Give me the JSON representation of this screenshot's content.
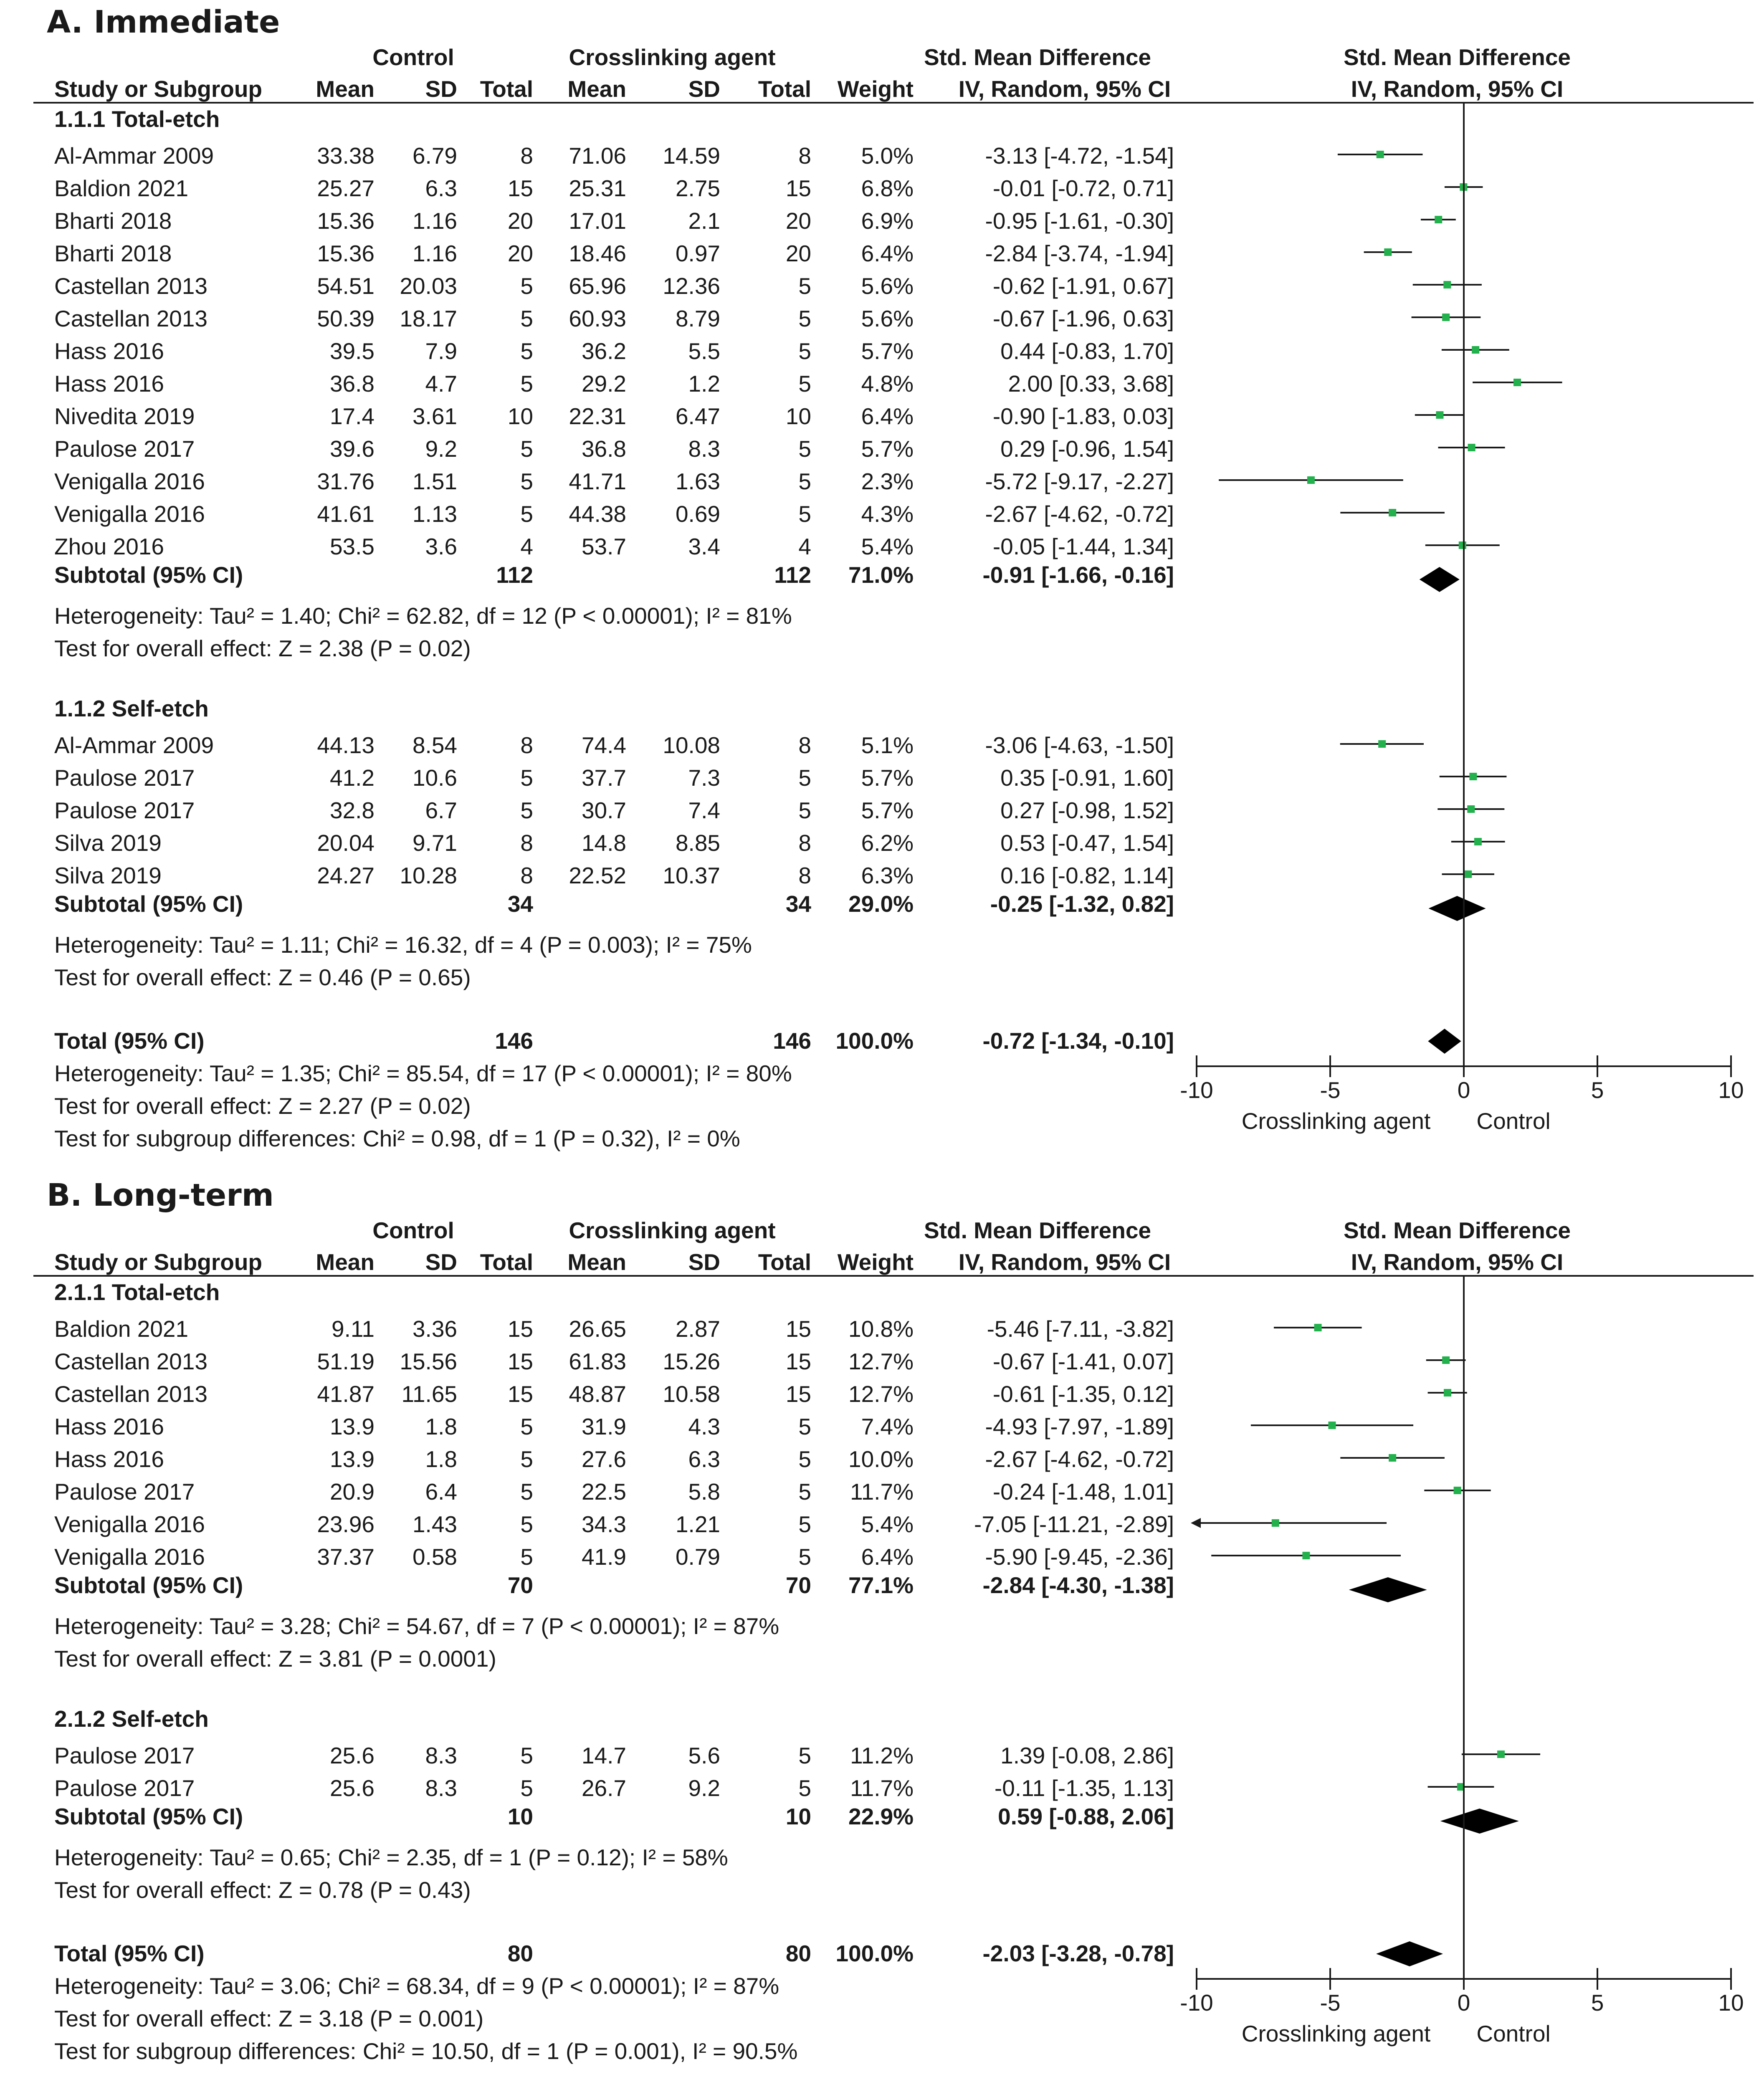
{
  "header": {
    "control": "Control",
    "treatment": "Crosslinking agent",
    "smd": "Std. Mean Difference",
    "study": "Study or Subgroup",
    "mean": "Mean",
    "sd": "SD",
    "total": "Total",
    "weight": "Weight",
    "method": "IV, Random, 95% CI"
  },
  "colors": {
    "marker": "#22b14c",
    "line": "#1a1a1a"
  },
  "chart_data": [
    {
      "type": "forest",
      "title": "A. Immediate",
      "xlim": [
        -10,
        10
      ],
      "xticks": [
        "-10",
        "-5",
        "0",
        "5",
        "10"
      ],
      "xlabel_left": "Crosslinking agent",
      "xlabel_right": "Control",
      "subgroups": [
        {
          "name": "1.1.1 Total-etch",
          "studies": [
            {
              "study": "Al-Ammar 2009",
              "c_mean": "33.38",
              "c_sd": "6.79",
              "c_n": "8",
              "t_mean": "71.06",
              "t_sd": "14.59",
              "t_n": "8",
              "weight": "5.0%",
              "ci_text": "-3.13 [-4.72, -1.54]",
              "est": -3.13,
              "lo": -4.72,
              "hi": -1.54
            },
            {
              "study": "Baldion 2021",
              "c_mean": "25.27",
              "c_sd": "6.3",
              "c_n": "15",
              "t_mean": "25.31",
              "t_sd": "2.75",
              "t_n": "15",
              "weight": "6.8%",
              "ci_text": "-0.01 [-0.72, 0.71]",
              "est": -0.01,
              "lo": -0.72,
              "hi": 0.71
            },
            {
              "study": "Bharti 2018",
              "c_mean": "15.36",
              "c_sd": "1.16",
              "c_n": "20",
              "t_mean": "17.01",
              "t_sd": "2.1",
              "t_n": "20",
              "weight": "6.9%",
              "ci_text": "-0.95 [-1.61, -0.30]",
              "est": -0.95,
              "lo": -1.61,
              "hi": -0.3
            },
            {
              "study": "Bharti 2018",
              "c_mean": "15.36",
              "c_sd": "1.16",
              "c_n": "20",
              "t_mean": "18.46",
              "t_sd": "0.97",
              "t_n": "20",
              "weight": "6.4%",
              "ci_text": "-2.84 [-3.74, -1.94]",
              "est": -2.84,
              "lo": -3.74,
              "hi": -1.94
            },
            {
              "study": "Castellan 2013",
              "c_mean": "54.51",
              "c_sd": "20.03",
              "c_n": "5",
              "t_mean": "65.96",
              "t_sd": "12.36",
              "t_n": "5",
              "weight": "5.6%",
              "ci_text": "-0.62 [-1.91, 0.67]",
              "est": -0.62,
              "lo": -1.91,
              "hi": 0.67
            },
            {
              "study": "Castellan 2013",
              "c_mean": "50.39",
              "c_sd": "18.17",
              "c_n": "5",
              "t_mean": "60.93",
              "t_sd": "8.79",
              "t_n": "5",
              "weight": "5.6%",
              "ci_text": "-0.67 [-1.96, 0.63]",
              "est": -0.67,
              "lo": -1.96,
              "hi": 0.63
            },
            {
              "study": "Hass 2016",
              "c_mean": "39.5",
              "c_sd": "7.9",
              "c_n": "5",
              "t_mean": "36.2",
              "t_sd": "5.5",
              "t_n": "5",
              "weight": "5.7%",
              "ci_text": "0.44 [-0.83, 1.70]",
              "est": 0.44,
              "lo": -0.83,
              "hi": 1.7
            },
            {
              "study": "Hass 2016",
              "c_mean": "36.8",
              "c_sd": "4.7",
              "c_n": "5",
              "t_mean": "29.2",
              "t_sd": "1.2",
              "t_n": "5",
              "weight": "4.8%",
              "ci_text": "2.00 [0.33, 3.68]",
              "est": 2.0,
              "lo": 0.33,
              "hi": 3.68
            },
            {
              "study": "Nivedita 2019",
              "c_mean": "17.4",
              "c_sd": "3.61",
              "c_n": "10",
              "t_mean": "22.31",
              "t_sd": "6.47",
              "t_n": "10",
              "weight": "6.4%",
              "ci_text": "-0.90 [-1.83, 0.03]",
              "est": -0.9,
              "lo": -1.83,
              "hi": 0.03
            },
            {
              "study": "Paulose 2017",
              "c_mean": "39.6",
              "c_sd": "9.2",
              "c_n": "5",
              "t_mean": "36.8",
              "t_sd": "8.3",
              "t_n": "5",
              "weight": "5.7%",
              "ci_text": "0.29 [-0.96, 1.54]",
              "est": 0.29,
              "lo": -0.96,
              "hi": 1.54
            },
            {
              "study": "Venigalla 2016",
              "c_mean": "31.76",
              "c_sd": "1.51",
              "c_n": "5",
              "t_mean": "41.71",
              "t_sd": "1.63",
              "t_n": "5",
              "weight": "2.3%",
              "ci_text": "-5.72 [-9.17, -2.27]",
              "est": -5.72,
              "lo": -9.17,
              "hi": -2.27
            },
            {
              "study": "Venigalla 2016",
              "c_mean": "41.61",
              "c_sd": "1.13",
              "c_n": "5",
              "t_mean": "44.38",
              "t_sd": "0.69",
              "t_n": "5",
              "weight": "4.3%",
              "ci_text": "-2.67 [-4.62, -0.72]",
              "est": -2.67,
              "lo": -4.62,
              "hi": -0.72
            },
            {
              "study": "Zhou 2016",
              "c_mean": "53.5",
              "c_sd": "3.6",
              "c_n": "4",
              "t_mean": "53.7",
              "t_sd": "3.4",
              "t_n": "4",
              "weight": "5.4%",
              "ci_text": "-0.05 [-1.44, 1.34]",
              "est": -0.05,
              "lo": -1.44,
              "hi": 1.34
            }
          ],
          "subtotal": {
            "label": "Subtotal (95% CI)",
            "c_n": "112",
            "t_n": "112",
            "weight": "71.0%",
            "ci_text": "-0.91 [-1.66, -0.16]",
            "est": -0.91,
            "lo": -1.66,
            "hi": -0.16
          },
          "heterogeneity": "Heterogeneity: Tau² = 1.40; Chi² = 62.82, df = 12 (P < 0.00001); I² = 81%",
          "overall": "Test for overall effect: Z = 2.38 (P = 0.02)"
        },
        {
          "name": "1.1.2 Self-etch",
          "studies": [
            {
              "study": "Al-Ammar 2009",
              "c_mean": "44.13",
              "c_sd": "8.54",
              "c_n": "8",
              "t_mean": "74.4",
              "t_sd": "10.08",
              "t_n": "8",
              "weight": "5.1%",
              "ci_text": "-3.06 [-4.63, -1.50]",
              "est": -3.06,
              "lo": -4.63,
              "hi": -1.5
            },
            {
              "study": "Paulose 2017",
              "c_mean": "41.2",
              "c_sd": "10.6",
              "c_n": "5",
              "t_mean": "37.7",
              "t_sd": "7.3",
              "t_n": "5",
              "weight": "5.7%",
              "ci_text": "0.35 [-0.91, 1.60]",
              "est": 0.35,
              "lo": -0.91,
              "hi": 1.6
            },
            {
              "study": "Paulose 2017",
              "c_mean": "32.8",
              "c_sd": "6.7",
              "c_n": "5",
              "t_mean": "30.7",
              "t_sd": "7.4",
              "t_n": "5",
              "weight": "5.7%",
              "ci_text": "0.27 [-0.98, 1.52]",
              "est": 0.27,
              "lo": -0.98,
              "hi": 1.52
            },
            {
              "study": "Silva 2019",
              "c_mean": "20.04",
              "c_sd": "9.71",
              "c_n": "8",
              "t_mean": "14.8",
              "t_sd": "8.85",
              "t_n": "8",
              "weight": "6.2%",
              "ci_text": "0.53 [-0.47, 1.54]",
              "est": 0.53,
              "lo": -0.47,
              "hi": 1.54
            },
            {
              "study": "Silva 2019",
              "c_mean": "24.27",
              "c_sd": "10.28",
              "c_n": "8",
              "t_mean": "22.52",
              "t_sd": "10.37",
              "t_n": "8",
              "weight": "6.3%",
              "ci_text": "0.16 [-0.82, 1.14]",
              "est": 0.16,
              "lo": -0.82,
              "hi": 1.14
            }
          ],
          "subtotal": {
            "label": "Subtotal (95% CI)",
            "c_n": "34",
            "t_n": "34",
            "weight": "29.0%",
            "ci_text": "-0.25 [-1.32, 0.82]",
            "est": -0.25,
            "lo": -1.32,
            "hi": 0.82
          },
          "heterogeneity": "Heterogeneity: Tau² = 1.11; Chi² = 16.32, df = 4 (P = 0.003); I² = 75%",
          "overall": "Test for overall effect: Z = 0.46 (P = 0.65)"
        }
      ],
      "total": {
        "label": "Total (95% CI)",
        "c_n": "146",
        "t_n": "146",
        "weight": "100.0%",
        "ci_text": "-0.72 [-1.34, -0.10]",
        "est": -0.72,
        "lo": -1.34,
        "hi": -0.1
      },
      "total_heterogeneity": "Heterogeneity: Tau² = 1.35; Chi² = 85.54, df = 17 (P < 0.00001); I² = 80%",
      "total_overall": "Test for overall effect: Z = 2.27 (P = 0.02)",
      "subgroup_diff": "Test for subgroup differences: Chi² = 0.98, df = 1 (P = 0.32), I² = 0%"
    },
    {
      "type": "forest",
      "title": "B. Long-term",
      "xlim": [
        -10,
        10
      ],
      "xticks": [
        "-10",
        "-5",
        "0",
        "5",
        "10"
      ],
      "xlabel_left": "Crosslinking agent",
      "xlabel_right": "Control",
      "subgroups": [
        {
          "name": "2.1.1 Total-etch",
          "studies": [
            {
              "study": "Baldion 2021",
              "c_mean": "9.11",
              "c_sd": "3.36",
              "c_n": "15",
              "t_mean": "26.65",
              "t_sd": "2.87",
              "t_n": "15",
              "weight": "10.8%",
              "ci_text": "-5.46 [-7.11, -3.82]",
              "est": -5.46,
              "lo": -7.11,
              "hi": -3.82
            },
            {
              "study": "Castellan 2013",
              "c_mean": "51.19",
              "c_sd": "15.56",
              "c_n": "15",
              "t_mean": "61.83",
              "t_sd": "15.26",
              "t_n": "15",
              "weight": "12.7%",
              "ci_text": "-0.67 [-1.41, 0.07]",
              "est": -0.67,
              "lo": -1.41,
              "hi": 0.07
            },
            {
              "study": "Castellan 2013",
              "c_mean": "41.87",
              "c_sd": "11.65",
              "c_n": "15",
              "t_mean": "48.87",
              "t_sd": "10.58",
              "t_n": "15",
              "weight": "12.7%",
              "ci_text": "-0.61 [-1.35, 0.12]",
              "est": -0.61,
              "lo": -1.35,
              "hi": 0.12
            },
            {
              "study": "Hass 2016",
              "c_mean": "13.9",
              "c_sd": "1.8",
              "c_n": "5",
              "t_mean": "31.9",
              "t_sd": "4.3",
              "t_n": "5",
              "weight": "7.4%",
              "ci_text": "-4.93 [-7.97, -1.89]",
              "est": -4.93,
              "lo": -7.97,
              "hi": -1.89
            },
            {
              "study": "Hass 2016",
              "c_mean": "13.9",
              "c_sd": "1.8",
              "c_n": "5",
              "t_mean": "27.6",
              "t_sd": "6.3",
              "t_n": "5",
              "weight": "10.0%",
              "ci_text": "-2.67 [-4.62, -0.72]",
              "est": -2.67,
              "lo": -4.62,
              "hi": -0.72
            },
            {
              "study": "Paulose 2017",
              "c_mean": "20.9",
              "c_sd": "6.4",
              "c_n": "5",
              "t_mean": "22.5",
              "t_sd": "5.8",
              "t_n": "5",
              "weight": "11.7%",
              "ci_text": "-0.24 [-1.48, 1.01]",
              "est": -0.24,
              "lo": -1.48,
              "hi": 1.01
            },
            {
              "study": "Venigalla 2016",
              "c_mean": "23.96",
              "c_sd": "1.43",
              "c_n": "5",
              "t_mean": "34.3",
              "t_sd": "1.21",
              "t_n": "5",
              "weight": "5.4%",
              "ci_text": "-7.05 [-11.21, -2.89]",
              "est": -7.05,
              "lo": -11.21,
              "hi": -2.89
            },
            {
              "study": "Venigalla 2016",
              "c_mean": "37.37",
              "c_sd": "0.58",
              "c_n": "5",
              "t_mean": "41.9",
              "t_sd": "0.79",
              "t_n": "5",
              "weight": "6.4%",
              "ci_text": "-5.90 [-9.45, -2.36]",
              "est": -5.9,
              "lo": -9.45,
              "hi": -2.36
            }
          ],
          "subtotal": {
            "label": "Subtotal (95% CI)",
            "c_n": "70",
            "t_n": "70",
            "weight": "77.1%",
            "ci_text": "-2.84 [-4.30, -1.38]",
            "est": -2.84,
            "lo": -4.3,
            "hi": -1.38
          },
          "heterogeneity": "Heterogeneity: Tau² = 3.28; Chi² = 54.67, df = 7 (P < 0.00001); I² = 87%",
          "overall": "Test for overall effect: Z = 3.81 (P = 0.0001)"
        },
        {
          "name": "2.1.2 Self-etch",
          "studies": [
            {
              "study": "Paulose 2017",
              "c_mean": "25.6",
              "c_sd": "8.3",
              "c_n": "5",
              "t_mean": "14.7",
              "t_sd": "5.6",
              "t_n": "5",
              "weight": "11.2%",
              "ci_text": "1.39 [-0.08, 2.86]",
              "est": 1.39,
              "lo": -0.08,
              "hi": 2.86
            },
            {
              "study": "Paulose 2017",
              "c_mean": "25.6",
              "c_sd": "8.3",
              "c_n": "5",
              "t_mean": "26.7",
              "t_sd": "9.2",
              "t_n": "5",
              "weight": "11.7%",
              "ci_text": "-0.11 [-1.35, 1.13]",
              "est": -0.11,
              "lo": -1.35,
              "hi": 1.13
            }
          ],
          "subtotal": {
            "label": "Subtotal (95% CI)",
            "c_n": "10",
            "t_n": "10",
            "weight": "22.9%",
            "ci_text": "0.59 [-0.88, 2.06]",
            "est": 0.59,
            "lo": -0.88,
            "hi": 2.06
          },
          "heterogeneity": "Heterogeneity: Tau² = 0.65; Chi² = 2.35, df = 1 (P = 0.12); I² = 58%",
          "overall": "Test for overall effect: Z = 0.78 (P = 0.43)"
        }
      ],
      "total": {
        "label": "Total (95% CI)",
        "c_n": "80",
        "t_n": "80",
        "weight": "100.0%",
        "ci_text": "-2.03 [-3.28, -0.78]",
        "est": -2.03,
        "lo": -3.28,
        "hi": -0.78
      },
      "total_heterogeneity": "Heterogeneity: Tau² = 3.06; Chi² = 68.34, df = 9 (P < 0.00001); I² = 87%",
      "total_overall": "Test for overall effect: Z = 3.18 (P = 0.001)",
      "subgroup_diff": "Test for subgroup differences: Chi² = 10.50, df = 1 (P = 0.001), I² = 90.5%"
    }
  ]
}
